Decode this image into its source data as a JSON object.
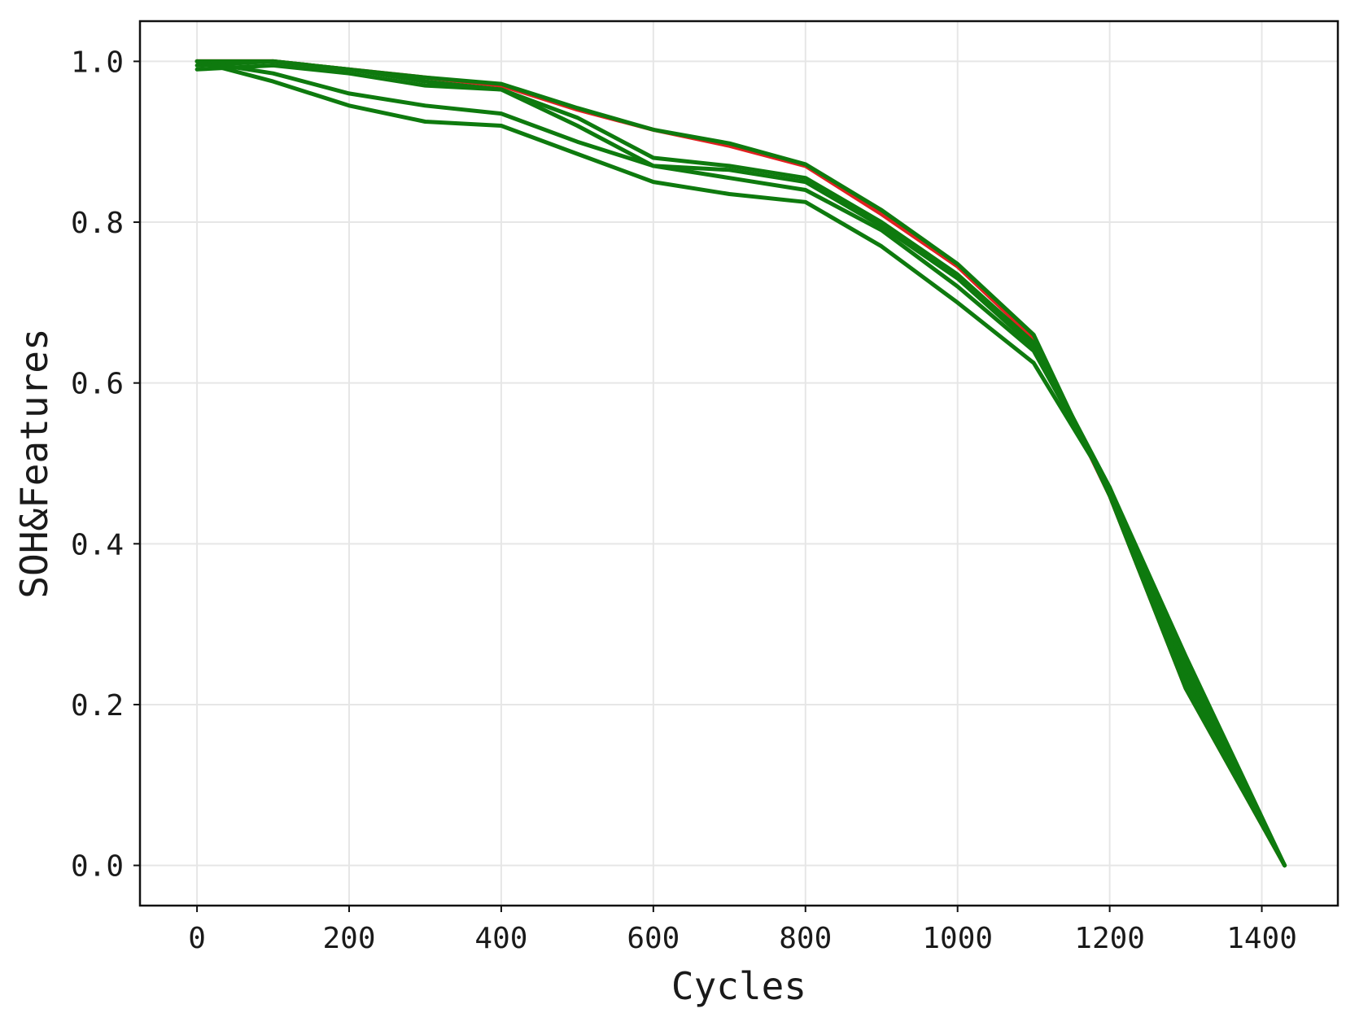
{
  "chart_data": {
    "type": "line",
    "title": "",
    "xlabel": "Cycles",
    "ylabel": "SOH&Features",
    "xlim": [
      -75,
      1500
    ],
    "ylim": [
      -0.05,
      1.05
    ],
    "xticks": [
      0,
      200,
      400,
      600,
      800,
      1000,
      1200,
      1400
    ],
    "yticks": [
      0.0,
      0.2,
      0.4,
      0.6,
      0.8,
      1.0
    ],
    "xtick_labels": [
      "0",
      "200",
      "400",
      "600",
      "800",
      "1000",
      "1200",
      "1400"
    ],
    "ytick_labels": [
      "0.0",
      "0.2",
      "0.4",
      "0.6",
      "0.8",
      "1.0"
    ],
    "grid": true,
    "legend": "none",
    "series": [
      {
        "color": "#e02020",
        "x": [
          0,
          100,
          200,
          300,
          400,
          500,
          600,
          700,
          800,
          900,
          1000,
          1100,
          1200,
          1300,
          1430
        ],
        "y": [
          1.0,
          1.0,
          0.99,
          0.98,
          0.97,
          0.94,
          0.915,
          0.895,
          0.87,
          0.81,
          0.745,
          0.655,
          0.46,
          0.22,
          0.0
        ]
      },
      {
        "color": "#0e7a0e",
        "x": [
          0,
          100,
          200,
          300,
          400,
          500,
          600,
          700,
          800,
          900,
          1000,
          1100,
          1200,
          1300,
          1430
        ],
        "y": [
          1.0,
          1.0,
          0.99,
          0.98,
          0.972,
          0.942,
          0.915,
          0.898,
          0.872,
          0.815,
          0.748,
          0.66,
          0.46,
          0.22,
          0.0
        ]
      },
      {
        "color": "#0e7a0e",
        "x": [
          0,
          100,
          200,
          300,
          400,
          500,
          600,
          700,
          800,
          900,
          1000,
          1100,
          1200,
          1300,
          1430
        ],
        "y": [
          0.99,
          0.995,
          0.985,
          0.97,
          0.965,
          0.93,
          0.88,
          0.87,
          0.855,
          0.8,
          0.735,
          0.65,
          0.47,
          0.24,
          0.0
        ]
      },
      {
        "color": "#0e7a0e",
        "x": [
          0,
          100,
          200,
          300,
          400,
          500,
          600,
          700,
          800,
          900,
          1000,
          1100,
          1200,
          1300,
          1430
        ],
        "y": [
          0.995,
          1.0,
          0.99,
          0.975,
          0.965,
          0.92,
          0.87,
          0.865,
          0.85,
          0.795,
          0.73,
          0.645,
          0.465,
          0.23,
          0.0
        ]
      },
      {
        "color": "#0e7a0e",
        "x": [
          0,
          100,
          200,
          300,
          400,
          500,
          600,
          700,
          800,
          900,
          1000,
          1100,
          1200,
          1300,
          1430
        ],
        "y": [
          1.0,
          0.985,
          0.96,
          0.945,
          0.935,
          0.9,
          0.87,
          0.855,
          0.84,
          0.79,
          0.72,
          0.64,
          0.47,
          0.25,
          0.0
        ]
      },
      {
        "color": "#0e7a0e",
        "x": [
          0,
          100,
          200,
          300,
          400,
          500,
          600,
          700,
          800,
          900,
          1000,
          1100,
          1200,
          1300,
          1430
        ],
        "y": [
          1.0,
          0.975,
          0.945,
          0.925,
          0.92,
          0.885,
          0.85,
          0.835,
          0.825,
          0.77,
          0.7,
          0.625,
          0.47,
          0.26,
          0.0
        ]
      }
    ]
  }
}
